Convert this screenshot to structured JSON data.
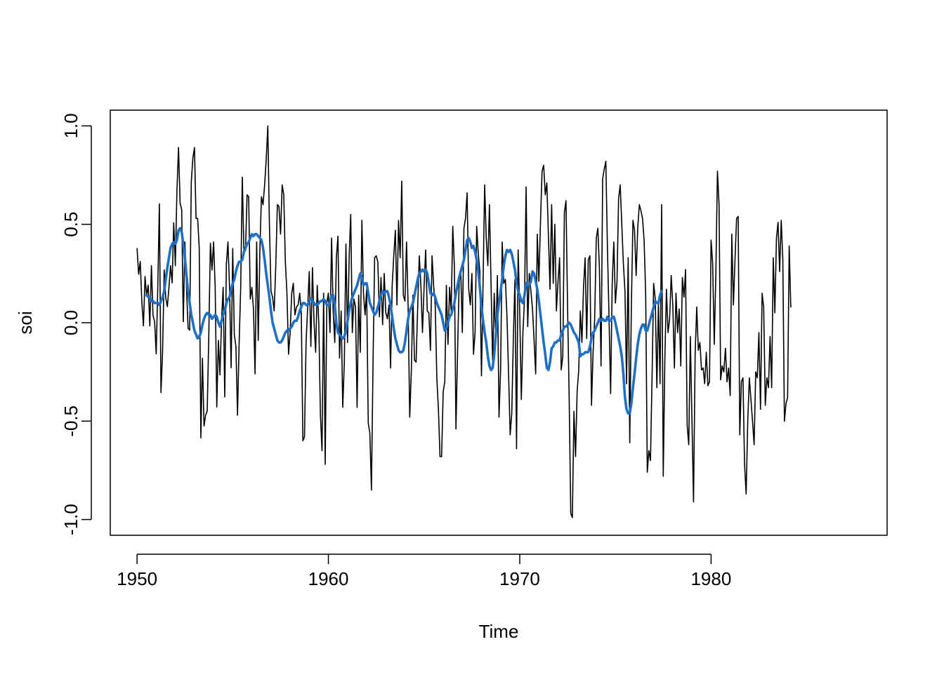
{
  "chart_data": {
    "type": "line",
    "title": "",
    "xlabel": "Time",
    "ylabel": "soi",
    "xlim": [
      1948.6,
      1989.2
    ],
    "ylim": [
      -1.08,
      1.08
    ],
    "x_ticks": [
      1950,
      1960,
      1970,
      1980
    ],
    "x_tick_labels": [
      "1950",
      "1960",
      "1970",
      "1980"
    ],
    "y_ticks": [
      -1.0,
      -0.5,
      0.0,
      0.5,
      1.0
    ],
    "y_tick_labels": [
      "-1.0",
      "-0.5",
      "0.0",
      "0.5",
      "1.0"
    ],
    "grid": false,
    "legend": "none",
    "series": [
      {
        "color": "#000000",
        "style": "thin",
        "x_start": 1950.0,
        "x_step": 0.0833333,
        "values": [
          0.377,
          0.246,
          0.311,
          0.104,
          -0.016,
          0.235,
          0.137,
          0.191,
          -0.016,
          0.29,
          0.038,
          0.005,
          -0.158,
          0.18,
          0.604,
          -0.355,
          -0.15,
          0.268,
          0.126,
          0.082,
          0.18,
          0.29,
          0.202,
          0.508,
          0.29,
          0.67,
          0.89,
          0.607,
          0.574,
          0.005,
          0.41,
          0.18,
          -0.027,
          -0.038,
          0.716,
          0.836,
          0.89,
          0.53,
          0.53,
          0.377,
          -0.585,
          -0.18,
          -0.525,
          -0.47,
          -0.448,
          -0.06,
          0.404,
          0.268,
          0.41,
          0.18,
          -0.428,
          -0.09,
          -0.265,
          0.016,
          0.18,
          -0.377,
          0.295,
          0.41,
          0.18,
          -0.229,
          0.377,
          -0.06,
          -0.12,
          -0.47,
          -0.11,
          0.18,
          0.74,
          0.366,
          0.366,
          0.65,
          0.64,
          0.12,
          0.18,
          0.07,
          -0.26,
          0.41,
          -0.09,
          0.36,
          0.64,
          0.6,
          0.7,
          0.83,
          1.0,
          0.5,
          0.16,
          0.13,
          0.06,
          0.29,
          0.6,
          0.59,
          0.45,
          0.7,
          0.65,
          0.31,
          0.15,
          -0.16,
          -0.05,
          0.15,
          0.2,
          0.04,
          0.08,
          0.09,
          0.15,
          0.05,
          -0.6,
          -0.58,
          -0.1,
          0.08,
          0.26,
          -0.12,
          0.28,
          0.0,
          -0.15,
          0.19,
          -0.01,
          -0.47,
          -0.65,
          0.15,
          -0.72,
          0.1,
          0.15,
          -0.05,
          0.43,
          0.06,
          -0.1,
          0.33,
          0.44,
          -0.18,
          0.06,
          -0.43,
          -0.2,
          0.4,
          -0.1,
          0.33,
          0.55,
          -0.05,
          0.12,
          0.08,
          -0.43,
          0.14,
          -0.15,
          0.52,
          0.15,
          0.04,
          0.17,
          -0.51,
          -0.56,
          -0.85,
          -0.2,
          0.33,
          0.34,
          0.31,
          0.03,
          0.23,
          -0.01,
          0.25,
          0.05,
          0.02,
          0.09,
          -0.23,
          0.19,
          0.34,
          0.47,
          0.09,
          0.52,
          0.33,
          0.72,
          0.14,
          0.11,
          0.41,
          0.08,
          -0.48,
          -0.25,
          0.14,
          -0.19,
          -0.2,
          0.08,
          0.34,
          0.19,
          -0.05,
          0.18,
          0.37,
          0.06,
          0.05,
          -0.14,
          0.34,
          0.19,
          0.09,
          -0.28,
          -0.44,
          -0.68,
          -0.68,
          -0.35,
          -0.3,
          0.19,
          -0.11,
          0.18,
          0.06,
          0.49,
          0.29,
          -0.54,
          -0.15,
          0.2,
          0.27,
          -0.05,
          0.48,
          0.53,
          0.66,
          0.17,
          0.09,
          0.25,
          -0.16,
          -0.05,
          0.49,
          0.35,
          0.26,
          -0.27,
          0.2,
          0.7,
          0.43,
          0.29,
          0.6,
          0.2,
          -0.2,
          0.15,
          -0.1,
          0.24,
          -0.48,
          -0.24,
          0.41,
          0.2,
          0.22,
          0.03,
          -0.26,
          -0.57,
          -0.46,
          -0.08,
          0.22,
          -0.64,
          0.37,
          0.05,
          -0.39,
          -0.05,
          0.12,
          0.69,
          -0.02,
          0.25,
          0.16,
          0.07,
          -0.09,
          -0.26,
          0.45,
          0.21,
          0.51,
          0.77,
          0.8,
          0.65,
          0.71,
          0.44,
          0.17,
          0.6,
          0.2,
          0.5,
          0.06,
          0.21,
          0.33,
          -0.24,
          -0.17,
          0.56,
          0.62,
          0.08,
          -0.38,
          -0.97,
          -0.99,
          -0.45,
          -0.68,
          -0.35,
          -0.24,
          0.06,
          -0.1,
          0.18,
          0.33,
          -0.08,
          0.32,
          0.34,
          -0.42,
          -0.15,
          0.02,
          0.43,
          0.48,
          0.27,
          -0.22,
          0.73,
          0.78,
          0.82,
          0.38,
          0.03,
          -0.36,
          0.2,
          0.41,
          0.1,
          0.21,
          0.63,
          0.7,
          0.5,
          0.3,
          0.16,
          -0.31,
          0.33,
          -0.61,
          0.08,
          0.52,
          0.47,
          0.24,
          0.48,
          0.6,
          0.57,
          0.53,
          0.42,
          0.14,
          -0.76,
          -0.65,
          -0.7,
          -0.27,
          0.2,
          0.12,
          -0.33,
          0.1,
          -0.31,
          0.6,
          -0.78,
          -0.19,
          0.17,
          -0.05,
          0.02,
          0.24,
          0.09,
          -0.23,
          0.15,
          -0.05,
          0.07,
          -0.22,
          0.23,
          0.13,
          0.27,
          -0.52,
          -0.62,
          -0.07,
          -0.49,
          -0.91,
          -0.16,
          0.08,
          -0.14,
          -0.1,
          -0.24,
          -0.23,
          -0.31,
          -0.15,
          -0.32,
          -0.3,
          0.42,
          0.3,
          -0.11,
          0.25,
          0.77,
          0.6,
          -0.29,
          -0.22,
          -0.25,
          -0.13,
          -0.3,
          -0.23,
          -0.37,
          0.45,
          0.09,
          0.32,
          0.53,
          0.54,
          -0.57,
          -0.3,
          -0.28,
          -0.72,
          -0.87,
          -0.5,
          -0.28,
          -0.39,
          -0.5,
          -0.62,
          -0.25,
          -0.28,
          -0.05,
          -0.44,
          0.15,
          0.08,
          -0.42,
          -0.28,
          -0.33,
          -0.07,
          -0.33,
          0.33,
          0.05,
          0.43,
          0.51,
          0.26,
          0.52,
          0.32,
          -0.5,
          -0.41,
          -0.38,
          0.39,
          0.08
        ]
      },
      {
        "color": "#1f6fc5",
        "style": "thick",
        "x_start": 1950.5,
        "x_step": 0.0833333,
        "values": [
          0.14,
          0.13,
          0.13,
          0.11,
          0.11,
          0.1,
          0.1,
          0.1,
          0.09,
          0.11,
          0.13,
          0.16,
          0.22,
          0.28,
          0.33,
          0.38,
          0.4,
          0.41,
          0.4,
          0.42,
          0.47,
          0.48,
          0.46,
          0.4,
          0.33,
          0.24,
          0.16,
          0.1,
          0.04,
          0.0,
          -0.04,
          -0.06,
          -0.08,
          -0.07,
          -0.05,
          -0.01,
          0.02,
          0.04,
          0.05,
          0.04,
          0.04,
          0.02,
          0.03,
          0.04,
          0.03,
          0.0,
          -0.02,
          0.01,
          0.04,
          0.06,
          0.1,
          0.12,
          0.13,
          0.17,
          0.2,
          0.22,
          0.26,
          0.29,
          0.31,
          0.31,
          0.32,
          0.36,
          0.38,
          0.4,
          0.41,
          0.43,
          0.45,
          0.44,
          0.45,
          0.45,
          0.44,
          0.43,
          0.42,
          0.38,
          0.32,
          0.25,
          0.19,
          0.13,
          0.06,
          0.0,
          -0.03,
          -0.06,
          -0.09,
          -0.1,
          -0.1,
          -0.09,
          -0.07,
          -0.05,
          -0.04,
          -0.04,
          -0.03,
          -0.02,
          0.0,
          0.01,
          0.01,
          0.03,
          0.06,
          0.08,
          0.1,
          0.1,
          0.09,
          0.09,
          0.11,
          0.12,
          0.11,
          0.1,
          0.09,
          0.09,
          0.1,
          0.11,
          0.11,
          0.12,
          0.11,
          0.09,
          0.09,
          0.1,
          0.14,
          0.14,
          0.09,
          0.0,
          -0.05,
          -0.06,
          -0.07,
          -0.08,
          -0.07,
          -0.04,
          0.01,
          0.06,
          0.1,
          0.13,
          0.15,
          0.17,
          0.19,
          0.22,
          0.25,
          0.23,
          0.19,
          0.2,
          0.2,
          0.15,
          0.1,
          0.08,
          0.06,
          0.04,
          0.05,
          0.08,
          0.11,
          0.14,
          0.16,
          0.15,
          0.16,
          0.16,
          0.13,
          0.09,
          0.03,
          -0.03,
          -0.08,
          -0.11,
          -0.14,
          -0.15,
          -0.15,
          -0.14,
          -0.1,
          -0.04,
          0.02,
          0.06,
          0.08,
          0.1,
          0.14,
          0.18,
          0.22,
          0.25,
          0.26,
          0.27,
          0.26,
          0.27,
          0.25,
          0.2,
          0.15,
          0.14,
          0.15,
          0.13,
          0.1,
          0.08,
          0.06,
          0.04,
          0.0,
          -0.04,
          -0.03,
          0.0,
          0.03,
          0.04,
          0.07,
          0.1,
          0.15,
          0.19,
          0.23,
          0.26,
          0.29,
          0.32,
          0.37,
          0.42,
          0.43,
          0.41,
          0.38,
          0.39,
          0.36,
          0.32,
          0.26,
          0.18,
          0.08,
          0.01,
          -0.05,
          -0.1,
          -0.17,
          -0.22,
          -0.24,
          -0.23,
          -0.16,
          -0.06,
          0.04,
          0.1,
          0.16,
          0.22,
          0.29,
          0.34,
          0.37,
          0.36,
          0.37,
          0.35,
          0.31,
          0.27,
          0.2,
          0.16,
          0.14,
          0.11,
          0.1,
          0.14,
          0.2,
          0.19,
          0.19,
          0.21,
          0.26,
          0.25,
          0.21,
          0.17,
          0.11,
          0.04,
          -0.03,
          -0.1,
          -0.16,
          -0.23,
          -0.24,
          -0.2,
          -0.13,
          -0.12,
          -0.1,
          -0.1,
          -0.09,
          -0.09,
          -0.06,
          -0.04,
          -0.02,
          -0.02,
          -0.01,
          0.0,
          -0.01,
          -0.03,
          -0.05,
          -0.06,
          -0.08,
          -0.1,
          -0.17,
          -0.16,
          -0.16,
          -0.15,
          -0.15,
          -0.15,
          -0.12,
          -0.08,
          -0.05,
          -0.04,
          -0.02,
          0.0,
          0.02,
          0.01,
          0.02,
          0.01,
          0.01,
          0.03,
          0.01,
          0.01,
          0.03,
          0.03,
          0.0,
          -0.04,
          -0.08,
          -0.12,
          -0.17,
          -0.26,
          -0.38,
          -0.44,
          -0.46,
          -0.46,
          -0.41,
          -0.33,
          -0.26,
          -0.18,
          -0.11,
          -0.06,
          -0.03,
          -0.01,
          -0.01,
          -0.04,
          -0.04,
          -0.01,
          0.02,
          0.05,
          0.08,
          0.11,
          0.1,
          0.1,
          0.14,
          0.16
        ]
      }
    ]
  }
}
